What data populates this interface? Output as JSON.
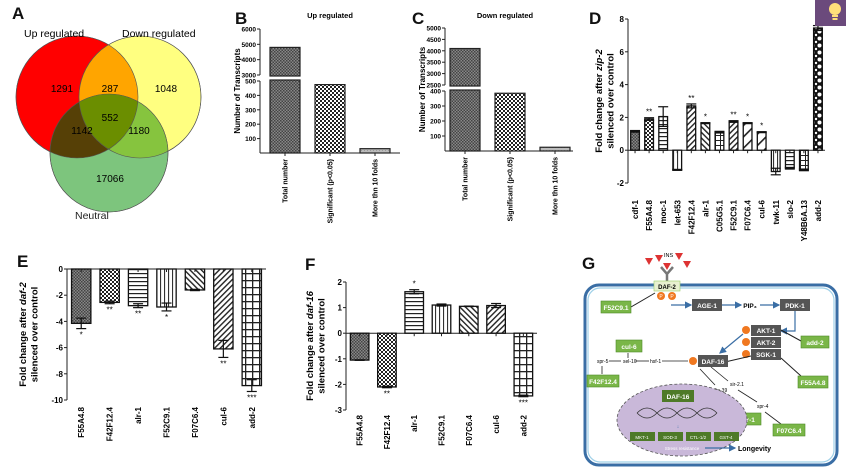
{
  "panels": {
    "a": {
      "letter": "A"
    },
    "b": {
      "letter": "B"
    },
    "c": {
      "letter": "C"
    },
    "d": {
      "letter": "D"
    },
    "e": {
      "letter": "E"
    },
    "f": {
      "letter": "F"
    },
    "g": {
      "letter": "G"
    }
  },
  "venn": {
    "sets": [
      {
        "name": "Up regulated",
        "color": "#ff0000"
      },
      {
        "name": "Down regulated",
        "color": "#ffff80"
      },
      {
        "name": "Neutral",
        "color": "#7dc57d"
      }
    ],
    "regions": {
      "up_only": "1291",
      "up_down": "287",
      "down_only": "1048",
      "all": "552",
      "up_neutral": "1142",
      "down_neutral": "1180",
      "neutral_only": "17066"
    },
    "region_colors": {
      "up_down": "#ffa500",
      "up_neutral": "#564006",
      "down_neutral": "#86c43e",
      "all": "#6b8e00"
    }
  },
  "chart_data": [
    {
      "id": "B",
      "type": "bar",
      "title": "Up regulated",
      "xlabel": "",
      "ylabel": "Number of Transcripts",
      "categories": [
        "Total number",
        "Significant (p<0.05)",
        "More thn 10 folds"
      ],
      "values": [
        4800,
        475,
        30
      ],
      "axis_break": {
        "lower": [
          0,
          500
        ],
        "upper": [
          3000,
          6000
        ]
      },
      "lower_ticks": [
        100,
        200,
        300,
        400,
        500
      ],
      "upper_ticks": [
        3000,
        4000,
        5000,
        6000
      ]
    },
    {
      "id": "C",
      "type": "bar",
      "title": "Down regulated",
      "xlabel": "",
      "ylabel": "Number of Transcripts",
      "categories": [
        "Total number",
        "Significant (p<0.05)",
        "More thn 10 folds"
      ],
      "values": [
        4100,
        385,
        25
      ],
      "axis_break": {
        "lower": [
          0,
          400
        ],
        "upper": [
          2500,
          5000
        ]
      },
      "lower_ticks": [
        100,
        200,
        300,
        400
      ],
      "upper_ticks": [
        2500,
        3000,
        3500,
        4000,
        4500,
        5000
      ]
    },
    {
      "id": "D",
      "type": "bar",
      "title": "",
      "xlabel": "",
      "ylabel": "Fold change after zip-2 silenced over control",
      "ylabel_parts": [
        "Fold change after ",
        "zip-2",
        "silenced over control"
      ],
      "categories": [
        "cdf-1",
        "F55A4.8",
        "moc-1",
        "let-653",
        "F42F12.4",
        "alr-1",
        "C05G5.1",
        "F52C9.1",
        "F07C6.4",
        "cul-6",
        "twk-11",
        "slo-2",
        "Y48B6A.13",
        "add-2"
      ],
      "values": [
        1.15,
        1.9,
        2.05,
        -1.2,
        2.7,
        1.65,
        1.1,
        1.75,
        1.65,
        1.1,
        -1.3,
        -1.1,
        -1.2,
        7.45
      ],
      "errors": [
        0.05,
        0.08,
        0.6,
        0.03,
        0.12,
        0.03,
        0.05,
        0.05,
        0.03,
        0.03,
        0.2,
        0.05,
        0.05,
        0.15
      ],
      "significance": [
        "",
        "**",
        "",
        "",
        "**",
        "*",
        "",
        "**",
        "*",
        "*",
        "",
        "",
        "",
        "**"
      ],
      "ylim": [
        -2,
        8
      ],
      "yticks": [
        -2,
        0,
        2,
        4,
        6,
        8
      ]
    },
    {
      "id": "E",
      "type": "bar",
      "title": "",
      "xlabel": "",
      "ylabel": "Fold change after daf-2 silenced over control",
      "ylabel_parts": [
        "Fold change after ",
        "daf-2",
        "silenced over control"
      ],
      "categories": [
        "F55A4.8",
        "F42F12.4",
        "alr-1",
        "F52C9.1",
        "F07C6.4",
        "cul-6",
        "add-2"
      ],
      "values": [
        -4.15,
        -2.55,
        -2.8,
        -2.9,
        -1.6,
        -6.1,
        -8.9
      ],
      "errors": [
        0.4,
        0.1,
        0.15,
        0.3,
        0.05,
        0.65,
        0.45
      ],
      "significance": [
        "*",
        "**",
        "**",
        "*",
        "",
        "**",
        "***"
      ],
      "ylim": [
        -10,
        0
      ],
      "yticks": [
        -10,
        -8,
        -6,
        -4,
        -2,
        0
      ]
    },
    {
      "id": "F",
      "type": "bar",
      "title": "",
      "xlabel": "",
      "ylabel": "Fold change after daf-16 silenced over control",
      "ylabel_parts": [
        "Fold change after ",
        "daf-16",
        "silenced over control"
      ],
      "categories": [
        "F55A4.8",
        "F42F12.4",
        "alr-1",
        "F52C9.1",
        "F07C6.4",
        "cul-6",
        "add-2"
      ],
      "values": [
        -1.05,
        -2.1,
        1.62,
        1.1,
        1.05,
        1.08,
        -2.45
      ],
      "errors": [
        0.01,
        0.03,
        0.08,
        0.04,
        0.01,
        0.08,
        0.03
      ],
      "significance": [
        "",
        "**",
        "*",
        "",
        "",
        "",
        "***"
      ],
      "ylim": [
        -3,
        2
      ],
      "yticks": [
        -3,
        -2,
        -1,
        0,
        1,
        2
      ]
    }
  ],
  "pathway": {
    "ligand": "INS",
    "receptor": "DAF-2",
    "phospho": "P",
    "kinases": [
      "AGE-1",
      "PIP₃",
      "PDK-1"
    ],
    "akt": [
      "AKT-1",
      "AKT-2",
      "SGK-1"
    ],
    "daf16": "DAF-16",
    "cofactors": {
      "spr5": "spr-5",
      "sel10": "sel-10",
      "hsf1": "hsf-1",
      "sir21": "sir-2.1",
      "spr4": "spr-4",
      "lin39": "lin-39"
    },
    "genes": {
      "f52c9": "F52C9.1",
      "cul6": "cul-6",
      "f42f12": "F42F12.4",
      "add2": "add-2",
      "f55a4": "F55A4.8",
      "alr1": "alr-1",
      "f07c6": "F07C6.4"
    },
    "nucleus": {
      "tf": "DAF-16",
      "targets": [
        "MKT-1",
        "SOD-3",
        "CTL-1/2",
        "GST-4"
      ],
      "outcome": "Stress resistance"
    },
    "longevity": "Longevity"
  },
  "overlay": {
    "icon": "lightbulb-icon"
  }
}
